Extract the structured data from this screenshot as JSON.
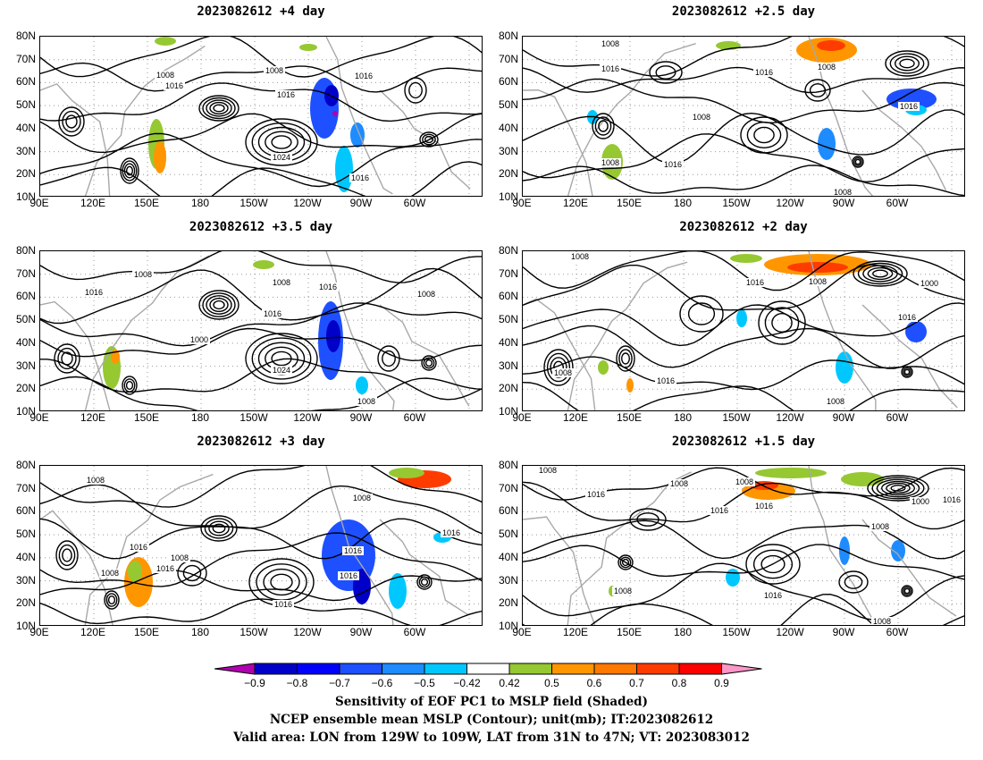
{
  "panels": [
    {
      "title": "2023082612 +4 day"
    },
    {
      "title": "2023082612 +2.5 day"
    },
    {
      "title": "2023082612 +3.5 day"
    },
    {
      "title": "2023082612 +2 day"
    },
    {
      "title": "2023082612 +3 day"
    },
    {
      "title": "2023082612 +1.5 day"
    }
  ],
  "axes": {
    "lat_labels": [
      "80N",
      "70N",
      "60N",
      "50N",
      "40N",
      "30N",
      "20N",
      "10N"
    ],
    "lon_labels": [
      "90E",
      "120E",
      "150E",
      "180",
      "150W",
      "120W",
      "90W",
      "60W"
    ]
  },
  "contour_labels": [
    "1008",
    "1016",
    "1024",
    "1000"
  ],
  "colorbar": {
    "colors": [
      "#b000b0",
      "#0000c8",
      "#0000ff",
      "#1e50ff",
      "#1e8cff",
      "#00c8ff",
      "#ffffff",
      "#96c832",
      "#ff9600",
      "#ff7800",
      "#ff3c00",
      "#ff0000",
      "#ff96c8"
    ],
    "labels": [
      "−0.9",
      "−0.8",
      "−0.7",
      "−0.6",
      "−0.5",
      "−0.42",
      "0.42",
      "0.5",
      "0.6",
      "0.7",
      "0.8",
      "0.9"
    ]
  },
  "caption": {
    "line1": "Sensitivity of EOF PC1 to MSLP field (Shaded)",
    "line2": "NCEP ensemble mean MSLP (Contour); unit(mb); IT:2023082612",
    "line3": "Valid area: LON from 129W to 109W, LAT from 31N to 47N; VT: 2023083012"
  }
}
